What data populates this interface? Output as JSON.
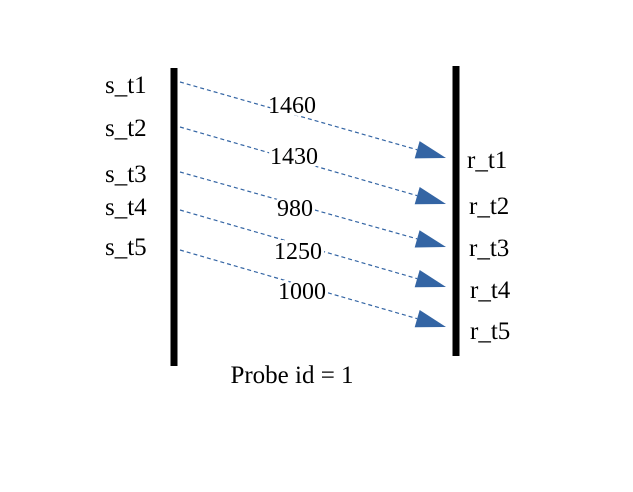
{
  "sender": {
    "labels": [
      "s_t1",
      "s_t2",
      "s_t3",
      "s_t4",
      "s_t5"
    ]
  },
  "receiver": {
    "labels": [
      "r_t1",
      "r_t2",
      "r_t3",
      "r_t4",
      "r_t5"
    ]
  },
  "packets": [
    {
      "size": "1460"
    },
    {
      "size": "1430"
    },
    {
      "size": "980"
    },
    {
      "size": "1250"
    },
    {
      "size": "1000"
    }
  ],
  "caption": "Probe id = 1",
  "colors": {
    "line": "#000000",
    "arrow": "#3465a4",
    "dash": "#3465a4"
  }
}
